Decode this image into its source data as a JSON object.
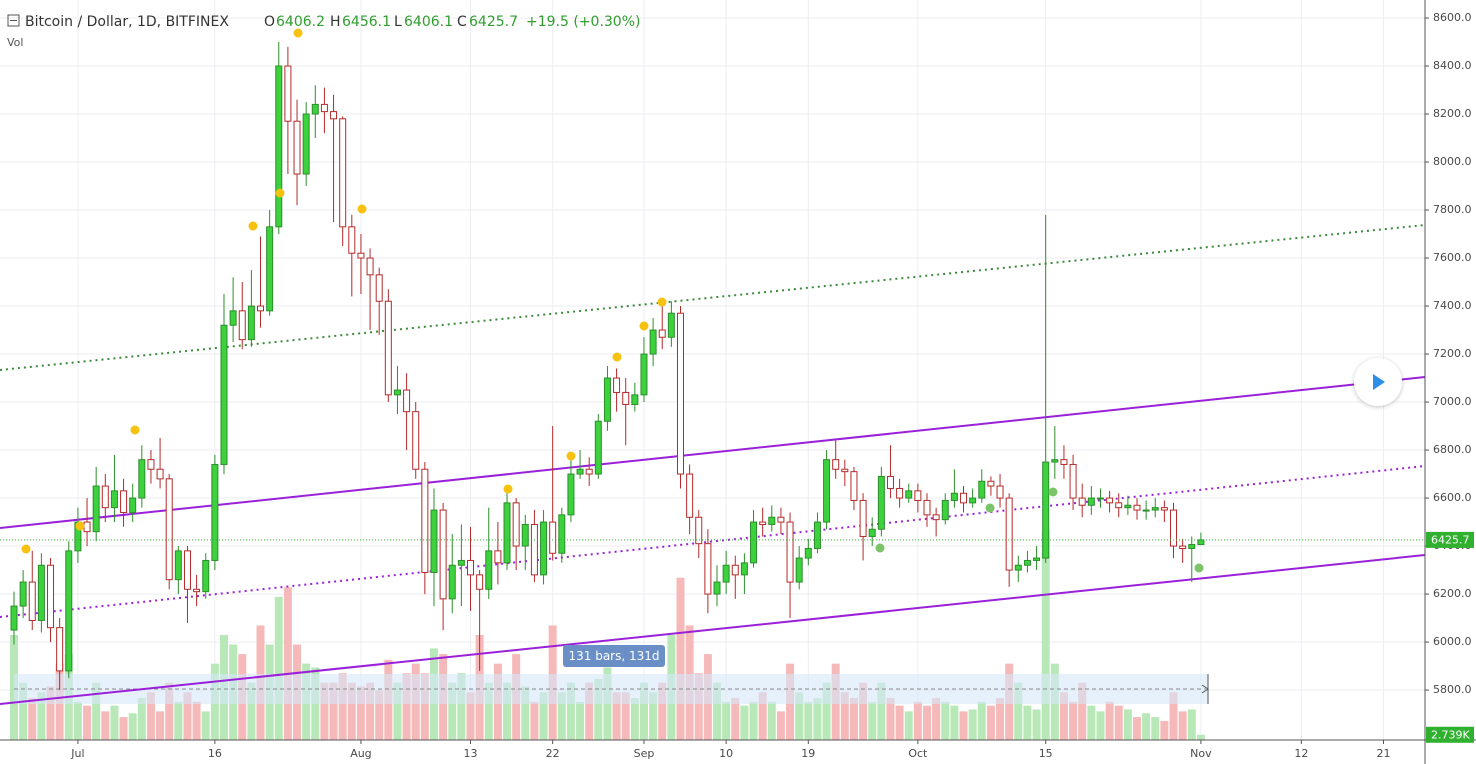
{
  "chart_data": {
    "type": "candlestick",
    "symbol": "Bitcoin / Dollar, 1D, BITFINEX",
    "ohlc_labels": [
      "O",
      "H",
      "L",
      "C"
    ],
    "change": "+19.5 (+0.30%)",
    "volume_title": "Vol",
    "measure_label": "131 bars, 131d",
    "volume_label": "2.739K",
    "up_color": "#3dd13d",
    "up_border": "#2b8f2b",
    "down_color": "#ffffff",
    "down_border": "#b52a2a",
    "volume_up_color": "#b8e8b8",
    "volume_down_color": "#f6b9b9",
    "grid": true,
    "ylim": [
      5592,
      8675
    ],
    "yticks": [
      {
        "value": 5800,
        "label": "5800.0"
      },
      {
        "value": 6000,
        "label": "6000.0"
      },
      {
        "value": 6200,
        "label": "6200.0"
      },
      {
        "value": 6400,
        "label": "6400.0"
      },
      {
        "value": 6600,
        "label": "6600.0"
      },
      {
        "value": 6800,
        "label": "6800.0"
      },
      {
        "value": 7000,
        "label": "7000.0"
      },
      {
        "value": 7200,
        "label": "7200.0"
      },
      {
        "value": 7400,
        "label": "7400.0"
      },
      {
        "value": 7600,
        "label": "7600.0"
      },
      {
        "value": 7800,
        "label": "7800.0"
      },
      {
        "value": 8000,
        "label": "8000.0"
      },
      {
        "value": 8200,
        "label": "8200.0"
      },
      {
        "value": 8400,
        "label": "8400.0"
      },
      {
        "value": 8600,
        "label": "8600.0"
      }
    ],
    "categories": [
      null,
      null,
      null,
      null,
      null,
      null,
      null,
      "Jul",
      null,
      null,
      null,
      null,
      null,
      null,
      null,
      null,
      null,
      null,
      null,
      null,
      null,
      null,
      "16",
      null,
      null,
      null,
      null,
      null,
      null,
      null,
      null,
      null,
      null,
      null,
      null,
      null,
      null,
      null,
      "Aug",
      null,
      null,
      null,
      null,
      null,
      null,
      null,
      null,
      null,
      null,
      null,
      "13",
      null,
      null,
      null,
      null,
      null,
      null,
      null,
      null,
      "22",
      null,
      null,
      null,
      null,
      null,
      null,
      null,
      null,
      null,
      "Sep",
      null,
      null,
      null,
      null,
      null,
      null,
      null,
      null,
      "10",
      null,
      null,
      null,
      null,
      null,
      null,
      null,
      null,
      "19",
      null,
      null,
      null,
      null,
      null,
      null,
      null,
      null,
      null,
      null,
      null,
      "Oct",
      null,
      null,
      null,
      null,
      null,
      null,
      null,
      null,
      null,
      null,
      null,
      null,
      null,
      "15",
      null,
      null,
      null,
      null,
      null,
      null,
      null,
      null,
      null,
      null,
      null,
      null,
      null,
      null,
      null,
      null,
      "Nov",
      null,
      null,
      null,
      null,
      null,
      null,
      null,
      null,
      null,
      null,
      "12",
      null,
      null,
      null,
      null,
      null,
      null,
      null,
      null,
      "21",
      null,
      null,
      null,
      null
    ],
    "open": [
      6050,
      6150,
      6250,
      6090,
      6320,
      6060,
      5880,
      6380,
      6500,
      6460,
      6650,
      6560,
      6630,
      6540,
      6600,
      6760,
      6720,
      6680,
      6260,
      6380,
      6220,
      6210,
      6340,
      6740,
      7320,
      7380,
      7260,
      7400,
      7380,
      7730,
      8400,
      8170,
      7950,
      8200,
      8240,
      8210,
      8180,
      7730,
      7620,
      7600,
      7530,
      7420,
      7030,
      7050,
      6960,
      6720,
      6290,
      6550,
      6180,
      6320,
      6340,
      6280,
      6220,
      6380,
      6330,
      6580,
      6400,
      6490,
      6280,
      6500,
      6370,
      6530,
      6700,
      6720,
      6700,
      6920,
      7100,
      7040,
      6990,
      7030,
      7200,
      7300,
      7270,
      7370,
      6700,
      6520,
      6410,
      6200,
      6250,
      6320,
      6280,
      6330,
      6500,
      6490,
      6520,
      6500,
      6250,
      6350,
      6390,
      6500,
      6760,
      6720,
      6710,
      6590,
      6440,
      6470,
      6690,
      6640,
      6600,
      6630,
      6590,
      6530,
      6510,
      6590,
      6620,
      6580,
      6600,
      6670,
      6650,
      6600,
      6300,
      6320,
      6340,
      6350,
      6750,
      6760,
      6740,
      6600,
      6570,
      6600,
      6600,
      6580,
      6560,
      6570,
      6550,
      6550,
      6560,
      6550,
      6400,
      6390,
      6406.2,
      null,
      null,
      null,
      null,
      null,
      null,
      null,
      null,
      null,
      null,
      null,
      null,
      null,
      null,
      null,
      null,
      null,
      null,
      null,
      null,
      null,
      null,
      null,
      null
    ],
    "high": [
      6210,
      6300,
      6380,
      6370,
      6350,
      6100,
      6420,
      6560,
      6600,
      6730,
      6700,
      6780,
      6680,
      6660,
      6820,
      6800,
      6850,
      6700,
      6400,
      6400,
      6280,
      6370,
      6780,
      7450,
      7520,
      7500,
      7550,
      7690,
      7800,
      8500,
      8480,
      8260,
      8250,
      8320,
      8310,
      8280,
      8190,
      7780,
      7700,
      7640,
      7560,
      7470,
      7150,
      7120,
      7000,
      6750,
      6640,
      6580,
      6450,
      6490,
      6480,
      6300,
      6560,
      6500,
      6620,
      6600,
      6530,
      6550,
      6550,
      6900,
      6560,
      6760,
      6800,
      6770,
      6950,
      7150,
      7140,
      7100,
      7080,
      7270,
      7350,
      7400,
      7420,
      7400,
      6740,
      6550,
      6470,
      6320,
      6380,
      6360,
      6370,
      6550,
      6560,
      6570,
      6560,
      6540,
      6400,
      6430,
      6540,
      6800,
      6840,
      6760,
      6730,
      6620,
      6520,
      6730,
      6820,
      6680,
      6660,
      6660,
      6620,
      6560,
      6620,
      6720,
      6650,
      6640,
      6720,
      6690,
      6700,
      6620,
      6360,
      6380,
      6400,
      7780,
      6900,
      6820,
      6780,
      6660,
      6650,
      6640,
      6630,
      6620,
      6610,
      6600,
      6590,
      6600,
      6590,
      6580,
      6430,
      6440,
      6456.1,
      null,
      null,
      null,
      null,
      null,
      null,
      null,
      null,
      null,
      null,
      null,
      null,
      null,
      null,
      null,
      null,
      null,
      null,
      null,
      null,
      null,
      null,
      null,
      null
    ],
    "low": [
      5990,
      6100,
      6050,
      6040,
      6000,
      5800,
      5850,
      6330,
      6400,
      6420,
      6500,
      6500,
      6480,
      6500,
      6560,
      6660,
      6640,
      6220,
      6200,
      6080,
      6150,
      6180,
      6300,
      6700,
      7250,
      7220,
      7230,
      7310,
      7360,
      7700,
      7950,
      7820,
      7900,
      8100,
      8120,
      7750,
      7650,
      7440,
      7450,
      7300,
      7280,
      7000,
      6950,
      6800,
      6680,
      6200,
      6150,
      6050,
      6120,
      6150,
      6130,
      5880,
      6180,
      6240,
      6300,
      6300,
      6300,
      6250,
      6240,
      6340,
      6330,
      6500,
      6680,
      6650,
      6680,
      6880,
      6960,
      6820,
      6960,
      7000,
      7150,
      7220,
      7230,
      6640,
      6450,
      6350,
      6120,
      6150,
      6200,
      6180,
      6200,
      6310,
      6440,
      6460,
      6450,
      6100,
      6220,
      6320,
      6370,
      6470,
      6680,
      6650,
      6550,
      6340,
      6400,
      6440,
      6600,
      6560,
      6580,
      6540,
      6480,
      6440,
      6490,
      6560,
      6540,
      6560,
      6580,
      6610,
      6560,
      6230,
      6250,
      6290,
      6300,
      6330,
      6680,
      6680,
      6550,
      6520,
      6530,
      6560,
      6540,
      6520,
      6530,
      6510,
      6510,
      6520,
      6500,
      6350,
      6330,
      6250,
      6406.1,
      null,
      null,
      null,
      null,
      null,
      null,
      null,
      null,
      null,
      null,
      null,
      null,
      null,
      null,
      null,
      null,
      null,
      null,
      null,
      null,
      null,
      null,
      null,
      null
    ],
    "close": [
      6150,
      6250,
      6090,
      6320,
      6060,
      5880,
      6380,
      6500,
      6460,
      6650,
      6560,
      6630,
      6540,
      6600,
      6760,
      6720,
      6680,
      6260,
      6380,
      6220,
      6210,
      6340,
      6740,
      7320,
      7380,
      7260,
      7400,
      7380,
      7730,
      8400,
      8170,
      7950,
      8200,
      8240,
      8210,
      8180,
      7730,
      7620,
      7600,
      7530,
      7420,
      7030,
      7050,
      6960,
      6720,
      6290,
      6550,
      6180,
      6320,
      6340,
      6280,
      6220,
      6380,
      6330,
      6580,
      6400,
      6490,
      6280,
      6500,
      6370,
      6530,
      6700,
      6720,
      6700,
      6920,
      7100,
      7040,
      6990,
      7030,
      7200,
      7300,
      7270,
      7370,
      6700,
      6520,
      6410,
      6200,
      6250,
      6320,
      6280,
      6330,
      6500,
      6490,
      6520,
      6500,
      6250,
      6350,
      6390,
      6500,
      6760,
      6720,
      6710,
      6590,
      6440,
      6470,
      6690,
      6640,
      6600,
      6630,
      6590,
      6530,
      6510,
      6590,
      6620,
      6580,
      6600,
      6670,
      6650,
      6600,
      6300,
      6320,
      6340,
      6350,
      6750,
      6760,
      6740,
      6600,
      6570,
      6600,
      6600,
      6580,
      6560,
      6570,
      6550,
      6550,
      6560,
      6550,
      6400,
      6390,
      6406.2,
      6425.7,
      null,
      null,
      null,
      null,
      null,
      null,
      null,
      null,
      null,
      null,
      null,
      null,
      null,
      null,
      null,
      null,
      null,
      null,
      null,
      null,
      null,
      null,
      null,
      null
    ],
    "volume": [
      55,
      30,
      22,
      25,
      28,
      40,
      45,
      20,
      18,
      30,
      15,
      18,
      12,
      14,
      22,
      25,
      15,
      30,
      20,
      25,
      20,
      15,
      40,
      55,
      50,
      45,
      30,
      60,
      50,
      75,
      80,
      50,
      40,
      38,
      30,
      30,
      35,
      30,
      28,
      30,
      26,
      42,
      30,
      35,
      40,
      35,
      48,
      45,
      30,
      35,
      25,
      55,
      30,
      40,
      30,
      45,
      28,
      20,
      25,
      60,
      25,
      30,
      20,
      30,
      32,
      38,
      25,
      25,
      22,
      30,
      25,
      30,
      55,
      85,
      60,
      35,
      45,
      30,
      20,
      22,
      18,
      20,
      25,
      20,
      15,
      40,
      25,
      20,
      22,
      30,
      40,
      25,
      22,
      30,
      20,
      30,
      22,
      18,
      15,
      20,
      18,
      22,
      20,
      18,
      15,
      16,
      20,
      18,
      22,
      40,
      30,
      18,
      16,
      110,
      40,
      25,
      20,
      30,
      18,
      15,
      20,
      18,
      16,
      12,
      14,
      12,
      10,
      25,
      15,
      16,
      2.739,
      null,
      null,
      null,
      null,
      null,
      null,
      null,
      null,
      null,
      null,
      null,
      null,
      null,
      null,
      null,
      null,
      null,
      null,
      null,
      null,
      null,
      null,
      null,
      null
    ]
  }
}
